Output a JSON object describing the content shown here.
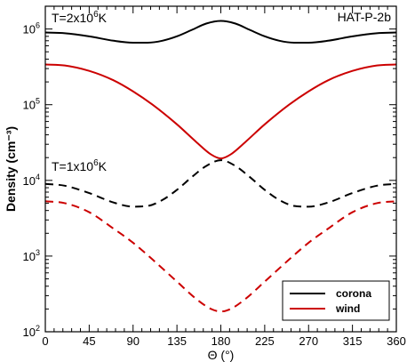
{
  "chart_data": {
    "type": "line",
    "title": "HAT-P-2b",
    "xlabel": "Θ (°)",
    "ylabel": "Density (cm⁻³)",
    "xlim": [
      0,
      360
    ],
    "ylim": [
      100,
      2000000
    ],
    "y_scale": "log",
    "grid": false,
    "legend_position": "bottom-right",
    "x_ticks": [
      0,
      45,
      90,
      135,
      180,
      225,
      270,
      315,
      360
    ],
    "x_tick_labels": [
      "0",
      "45",
      "90",
      "135",
      "180",
      "225",
      "270",
      "315",
      "360"
    ],
    "y_ticks": [
      100,
      1000,
      10000,
      100000,
      1000000
    ],
    "y_tick_labels": [
      {
        "base": "10",
        "exp": "2"
      },
      {
        "base": "10",
        "exp": "3"
      },
      {
        "base": "10",
        "exp": "4"
      },
      {
        "base": "10",
        "exp": "5"
      },
      {
        "base": "10",
        "exp": "6"
      }
    ],
    "annotations": [
      {
        "id": "t2",
        "pre": "T=2x10",
        "exp": "6",
        "post": "K"
      },
      {
        "id": "t1",
        "pre": "T=1x10",
        "exp": "6",
        "post": "K"
      }
    ],
    "legend": [
      {
        "label": "corona",
        "color": "#000000",
        "dash": "solid"
      },
      {
        "label": "wind",
        "color": "#cc0000",
        "dash": "solid"
      }
    ],
    "series": [
      {
        "kind": "corona",
        "temperature": "T=2x10^6K",
        "color": "#000000",
        "dash": "solid",
        "x": [
          0,
          20,
          45,
          70,
          90,
          105,
          120,
          135,
          150,
          165,
          180,
          195,
          210,
          225,
          240,
          255,
          270,
          290,
          315,
          340,
          360
        ],
        "y": [
          900000,
          880000,
          800000,
          700000,
          660000,
          660000,
          700000,
          800000,
          970000,
          1180000,
          1280000,
          1180000,
          970000,
          800000,
          700000,
          660000,
          660000,
          700000,
          800000,
          880000,
          900000
        ]
      },
      {
        "kind": "wind",
        "temperature": "T=2x10^6K",
        "color": "#cc0000",
        "dash": "solid",
        "x": [
          0,
          20,
          45,
          70,
          90,
          110,
          135,
          155,
          170,
          180,
          190,
          205,
          225,
          250,
          270,
          290,
          315,
          340,
          360
        ],
        "y": [
          340000,
          330000,
          280000,
          210000,
          150000,
          100000,
          55000,
          32000,
          22000,
          19500,
          22000,
          32000,
          55000,
          100000,
          150000,
          210000,
          280000,
          330000,
          340000
        ]
      },
      {
        "kind": "corona",
        "temperature": "T=1x10^6K",
        "color": "#000000",
        "dash": "dashed",
        "x": [
          0,
          20,
          45,
          70,
          90,
          105,
          120,
          135,
          150,
          165,
          180,
          195,
          210,
          225,
          240,
          255,
          270,
          290,
          315,
          340,
          360
        ],
        "y": [
          9000,
          8500,
          6800,
          5100,
          4500,
          4600,
          5500,
          7500,
          11000,
          15500,
          18500,
          15500,
          11000,
          7500,
          5500,
          4600,
          4500,
          5100,
          6800,
          8500,
          9000
        ]
      },
      {
        "kind": "wind",
        "temperature": "T=1x10^6K",
        "color": "#cc0000",
        "dash": "dashed",
        "x": [
          0,
          20,
          45,
          70,
          90,
          110,
          135,
          155,
          170,
          180,
          190,
          205,
          225,
          250,
          270,
          290,
          315,
          340,
          360
        ],
        "y": [
          5300,
          5000,
          3800,
          2300,
          1500,
          900,
          460,
          270,
          200,
          185,
          200,
          270,
          460,
          900,
          1500,
          2300,
          3800,
          5000,
          5300
        ]
      }
    ]
  }
}
